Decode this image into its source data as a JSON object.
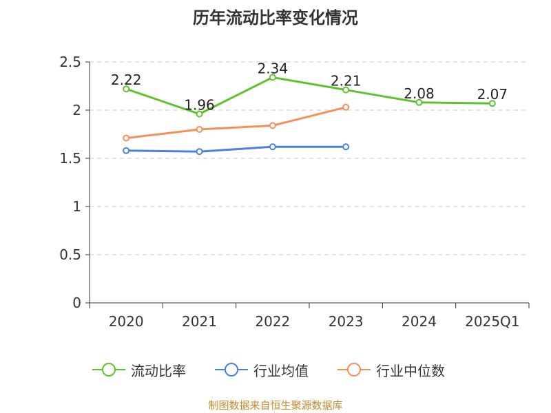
{
  "page_title": "历年流动比率变化情况",
  "source_text": "制图数据来自恒生聚源数据库",
  "chart_data": {
    "type": "line",
    "title": "历年流动比率变化情况",
    "categories": [
      "2020",
      "2021",
      "2022",
      "2023",
      "2024",
      "2025Q1"
    ],
    "ylim": [
      0,
      2.5
    ],
    "yticks": [
      "0",
      "0.5",
      "1",
      "1.5",
      "2",
      "2.5"
    ],
    "grid": true,
    "legend_position": "bottom",
    "series": [
      {
        "name": "流动比率",
        "color": "#5ec22f",
        "values": [
          2.22,
          1.96,
          2.34,
          2.21,
          2.08,
          2.07
        ],
        "labels": [
          "2.22",
          "1.96",
          "2.34",
          "2.21",
          "2.08",
          "2.07"
        ],
        "show_labels": true
      },
      {
        "name": "行业均值",
        "color": "#4e7fde",
        "values": [
          1.58,
          1.57,
          1.62,
          1.62,
          null,
          null
        ],
        "show_labels": false
      },
      {
        "name": "行业中位数",
        "color": "#f68e58",
        "values": [
          1.71,
          1.8,
          1.84,
          2.03,
          null,
          null
        ],
        "show_labels": false
      }
    ]
  }
}
